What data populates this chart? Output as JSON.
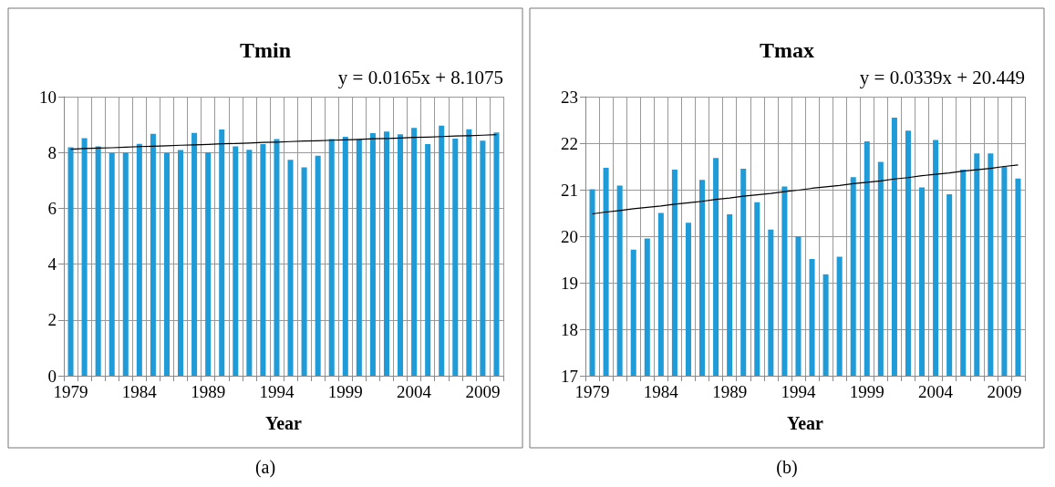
{
  "chart_data": [
    {
      "type": "bar",
      "title": "Tmin",
      "xlabel": "Year",
      "categories": [
        "1979",
        null,
        null,
        null,
        null,
        "1984",
        null,
        null,
        null,
        null,
        "1989",
        null,
        null,
        null,
        null,
        "1994",
        null,
        null,
        null,
        null,
        "1999",
        null,
        null,
        null,
        null,
        "2004",
        null,
        null,
        null,
        null,
        "2009",
        null
      ],
      "series": [
        {
          "color": "#1f9bd7",
          "values": [
            8.19,
            8.51,
            8.22,
            7.99,
            8.0,
            8.31,
            8.67,
            7.99,
            8.09,
            8.7,
            8.01,
            8.82,
            8.22,
            8.1,
            8.3,
            8.48,
            7.74,
            7.47,
            7.88,
            8.48,
            8.56,
            8.47,
            8.69,
            8.75,
            8.65,
            8.88,
            8.3,
            8.96,
            8.5,
            8.83,
            8.42,
            8.72
          ]
        },
        {
          "type": "line",
          "color": "#000000",
          "values": [
            8.12,
            8.14,
            8.16,
            8.17,
            8.19,
            8.21,
            8.22,
            8.24,
            8.26,
            8.27,
            8.29,
            8.31,
            8.32,
            8.34,
            8.36,
            8.37,
            8.39,
            8.41,
            8.42,
            8.44,
            8.45,
            8.47,
            8.49,
            8.5,
            8.52,
            8.54,
            8.55,
            8.57,
            8.59,
            8.6,
            8.62,
            8.64
          ]
        }
      ],
      "ylim": [
        0,
        10
      ],
      "yticks": [
        0,
        2,
        4,
        6,
        8,
        10
      ],
      "grid": true,
      "marker": "none",
      "annotations": [
        "y = 0.0165x + 8.1075",
        "(a)"
      ]
    },
    {
      "type": "bar",
      "title": "Tmax",
      "xlabel": "Year",
      "categories": [
        "1979",
        null,
        null,
        null,
        null,
        "1984",
        null,
        null,
        null,
        null,
        "1989",
        null,
        null,
        null,
        null,
        "1994",
        null,
        null,
        null,
        null,
        "1999",
        null,
        null,
        null,
        null,
        "2004",
        null,
        null,
        null,
        null,
        "2009",
        null
      ],
      "series": [
        {
          "color": "#1f9bd7",
          "values": [
            21.01,
            21.47,
            21.09,
            19.71,
            19.95,
            20.5,
            21.43,
            20.29,
            21.21,
            21.68,
            20.47,
            21.45,
            20.73,
            20.14,
            21.07,
            20.0,
            19.51,
            19.18,
            19.56,
            21.27,
            22.04,
            21.6,
            22.55,
            22.27,
            21.05,
            22.07,
            20.9,
            21.43,
            21.78,
            21.78,
            21.49,
            21.24
          ]
        },
        {
          "type": "line",
          "color": "#000000",
          "values": [
            20.48,
            20.52,
            20.55,
            20.59,
            20.62,
            20.65,
            20.69,
            20.72,
            20.75,
            20.79,
            20.82,
            20.86,
            20.89,
            20.92,
            20.96,
            20.99,
            21.03,
            21.06,
            21.09,
            21.13,
            21.16,
            21.19,
            21.23,
            21.26,
            21.3,
            21.33,
            21.36,
            21.4,
            21.43,
            21.46,
            21.5,
            21.53
          ]
        }
      ],
      "ylim": [
        17,
        23
      ],
      "yticks": [
        17,
        18,
        19,
        20,
        21,
        22,
        23
      ],
      "grid": true,
      "marker": "none",
      "annotations": [
        "y = 0.0339x + 20.449",
        "(b)"
      ]
    }
  ]
}
